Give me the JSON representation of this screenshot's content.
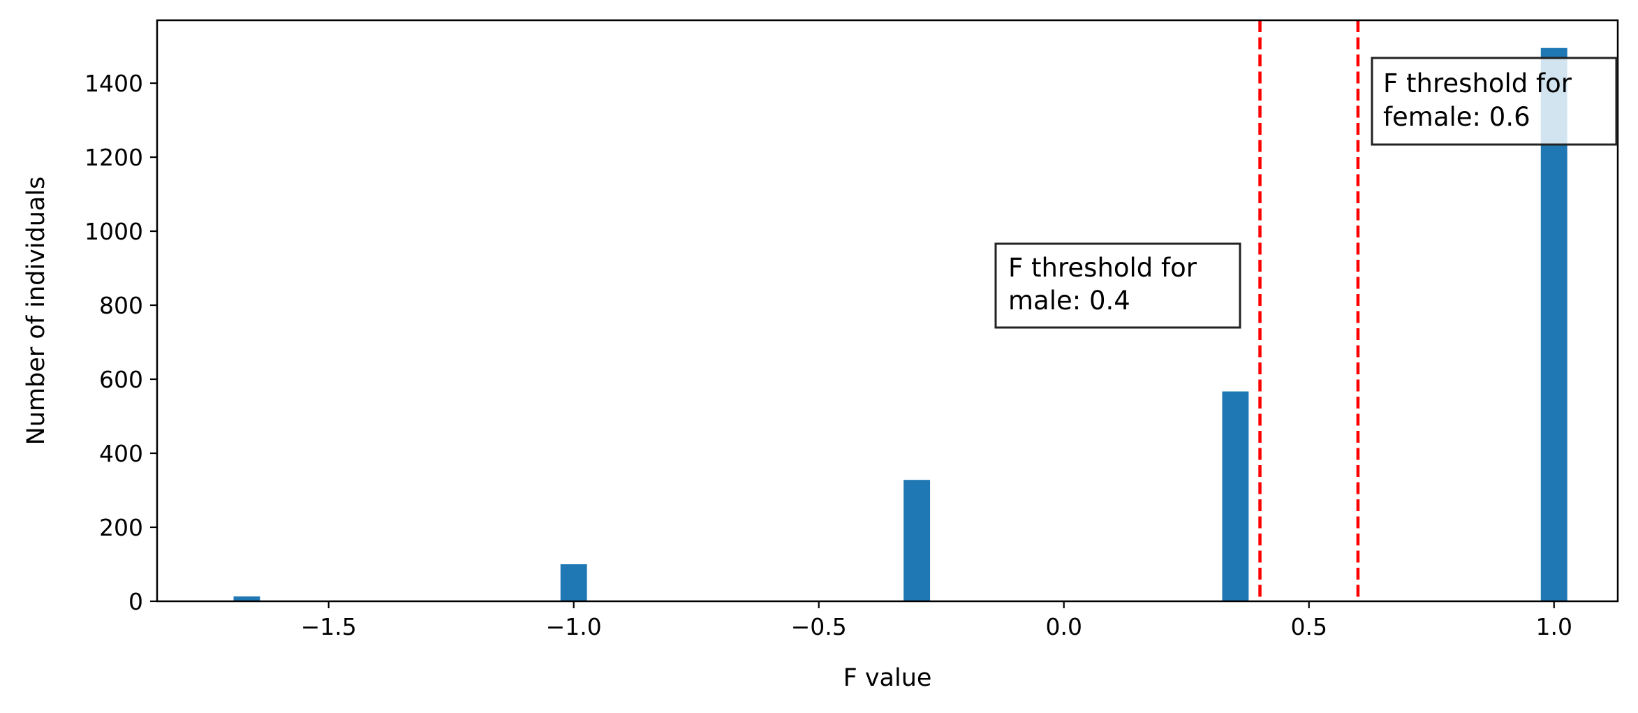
{
  "chart_data": {
    "type": "bar",
    "title": "",
    "xlabel": "F value",
    "ylabel": "Number of individuals",
    "xlim": [
      -1.85,
      1.13
    ],
    "ylim": [
      0,
      1570
    ],
    "xticks": [
      -1.5,
      -1.0,
      -0.5,
      0.0,
      0.5,
      1.0
    ],
    "xtick_labels": [
      "−1.5",
      "−1.0",
      "−0.5",
      "0.0",
      "0.5",
      "1.0"
    ],
    "yticks": [
      0,
      200,
      400,
      600,
      800,
      1000,
      1200,
      1400
    ],
    "ytick_labels": [
      "0",
      "200",
      "400",
      "600",
      "800",
      "1000",
      "1200",
      "1400"
    ],
    "bar_width": 0.054,
    "bins": [
      {
        "x": -1.667,
        "value": 13
      },
      {
        "x": -1.0,
        "value": 100
      },
      {
        "x": -0.3,
        "value": 328
      },
      {
        "x": 0.35,
        "value": 567
      },
      {
        "x": 1.0,
        "value": 1495
      }
    ],
    "bar_color": "#1f77b4",
    "grid": false,
    "legend": "none",
    "thresholds": [
      {
        "x": 0.4,
        "color": "#ff0000",
        "style": "dashed"
      },
      {
        "x": 0.6,
        "color": "#ff0000",
        "style": "dashed"
      }
    ],
    "annotations": [
      {
        "lines": [
          "F threshold for",
          "male: 0.4"
        ]
      },
      {
        "lines": [
          "F threshold for",
          "female: 0.6"
        ]
      }
    ]
  }
}
